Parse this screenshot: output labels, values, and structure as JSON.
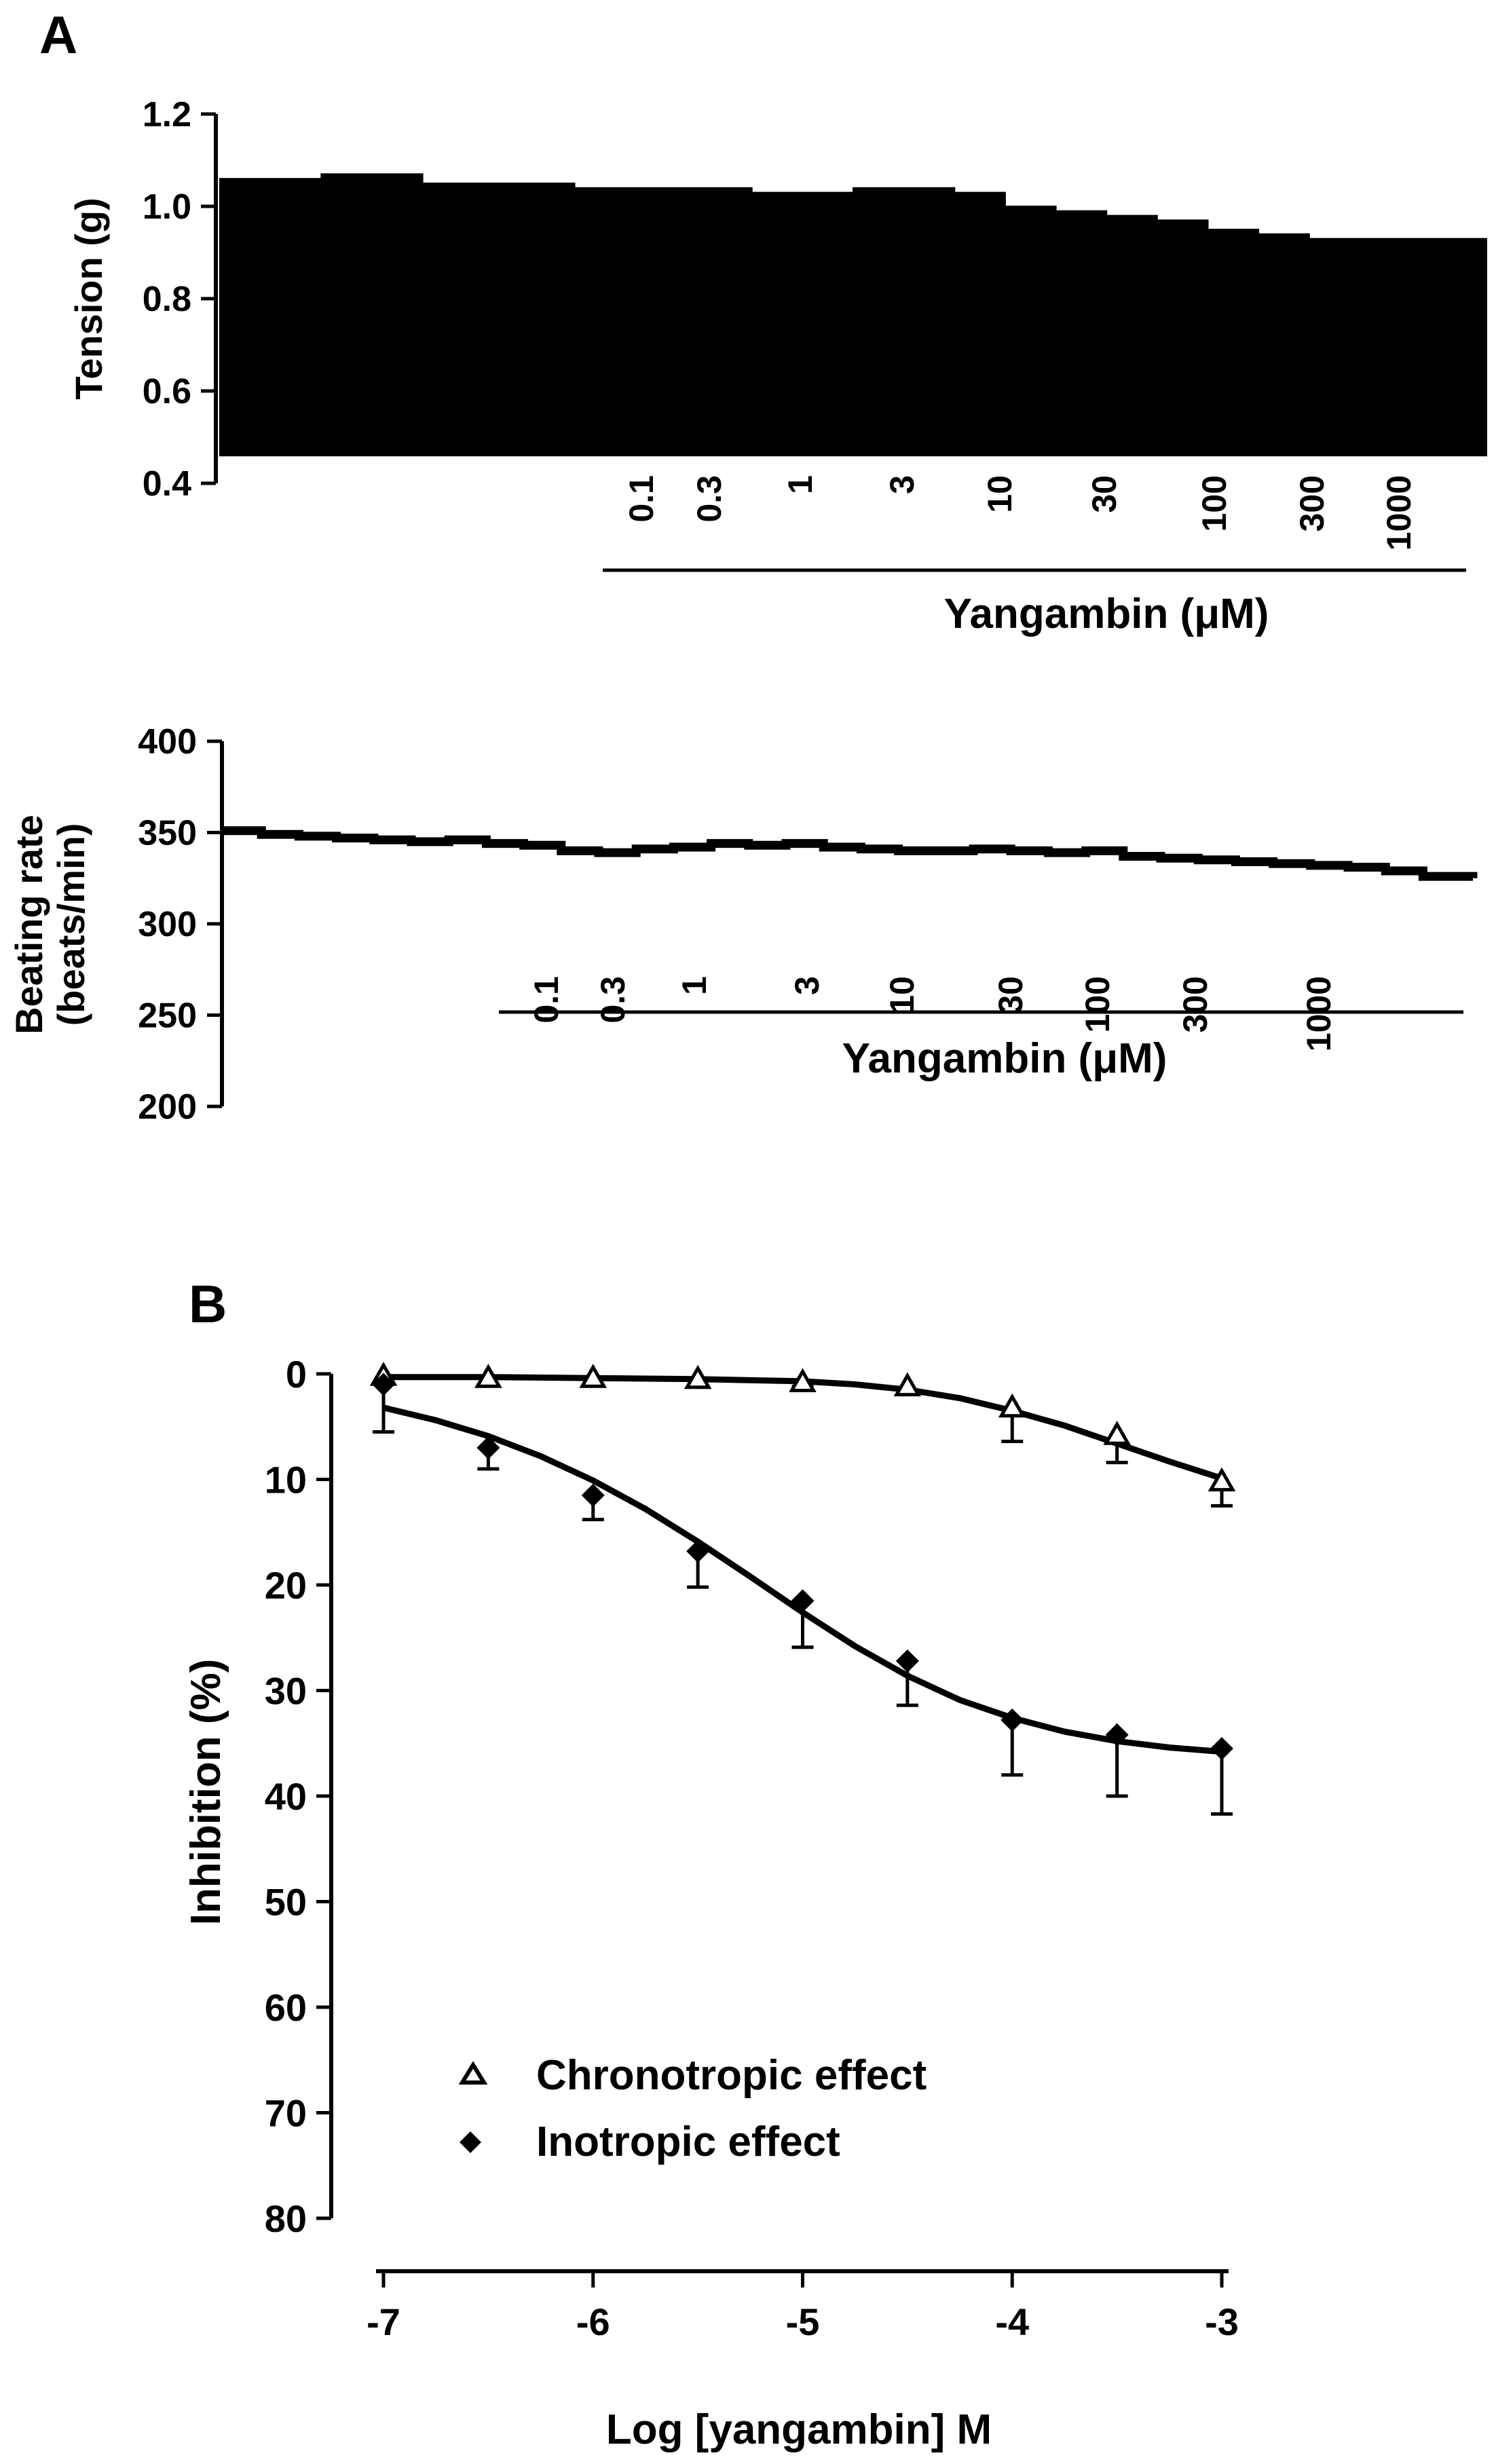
{
  "panels": {
    "a_label": "A",
    "b_label": "B"
  },
  "colors": {
    "ink": "#000000",
    "background": "#ffffff"
  },
  "chart_data": [
    {
      "panel": "A",
      "type": "line",
      "title": "",
      "ylabel": "Tension (g)",
      "xlabel": "",
      "ylim": [
        0.4,
        1.2
      ],
      "yticks": [
        0.4,
        0.6,
        0.8,
        1.0,
        1.2
      ],
      "ytick_labels": [
        "0.4",
        "0.6",
        "0.8",
        "1.0",
        "1.2"
      ],
      "trace_fill": "solid black contraction recording",
      "series": [
        {
          "peak_envelope_x": [
            0,
            4,
            8,
            12,
            16,
            20,
            24,
            28,
            30,
            34,
            38,
            42,
            46,
            50,
            54,
            58,
            62,
            66,
            70,
            74,
            78,
            82,
            86,
            90,
            94,
            100
          ],
          "peak_envelope": [
            1.06,
            1.06,
            1.07,
            1.07,
            1.05,
            1.05,
            1.05,
            1.04,
            1.04,
            1.04,
            1.04,
            1.03,
            1.03,
            1.04,
            1.04,
            1.03,
            1.0,
            0.99,
            0.98,
            0.97,
            0.95,
            0.94,
            0.93,
            0.93,
            0.93,
            0.92
          ],
          "trough_level": 0.46
        }
      ],
      "dose_axis": {
        "label": "Yangambin (μM)",
        "doses": [
          "0.1",
          "0.3",
          "1",
          "3",
          "10",
          "30",
          "100",
          "300",
          "1000"
        ]
      }
    },
    {
      "panel": "A",
      "type": "line",
      "title": "",
      "ylabel_line1": "Beating rate",
      "ylabel_line2": "(beats/min)",
      "xlabel": "",
      "ylim": [
        200,
        400
      ],
      "yticks": [
        200,
        250,
        300,
        350,
        400
      ],
      "ytick_labels": [
        "200",
        "250",
        "300",
        "350",
        "400"
      ],
      "series": [
        {
          "x": [
            0,
            3,
            6,
            9,
            12,
            15,
            18,
            21,
            24,
            27,
            30,
            33,
            36,
            39,
            42,
            45,
            48,
            51,
            54,
            57,
            60,
            63,
            66,
            69,
            72,
            75,
            78,
            81,
            84,
            87,
            90,
            93,
            96,
            100
          ],
          "y": [
            351,
            349,
            348,
            347,
            346,
            345,
            346,
            344,
            343,
            340,
            339,
            341,
            342,
            344,
            343,
            344,
            342,
            341,
            340,
            340,
            341,
            340,
            339,
            340,
            337,
            336,
            335,
            334,
            333,
            332,
            331,
            329,
            326,
            325
          ]
        }
      ],
      "dose_axis": {
        "label": "Yangambin (μM)",
        "doses": [
          "0.1",
          "0.3",
          "1",
          "3",
          "10",
          "30",
          "100",
          "300",
          "1000"
        ]
      }
    },
    {
      "panel": "B",
      "type": "scatter",
      "title": "",
      "xlabel": "Log [yangambin] M",
      "ylabel": "Inhibition (%)",
      "xlim": [
        -7,
        -3
      ],
      "ylim": [
        0,
        80
      ],
      "y_inverted": true,
      "xticks": [
        -7,
        -6,
        -5,
        -4,
        -3
      ],
      "xtick_labels": [
        "-7",
        "-6",
        "-5",
        "-4",
        "-3"
      ],
      "yticks": [
        0,
        10,
        20,
        30,
        40,
        50,
        60,
        70,
        80
      ],
      "ytick_labels": [
        "0",
        "10",
        "20",
        "30",
        "40",
        "50",
        "60",
        "70",
        "80"
      ],
      "legend_position": "bottom-left",
      "series": [
        {
          "name": "Chronotropic effect",
          "marker": "open-triangle",
          "x": [
            -7,
            -6.5,
            -6,
            -5.5,
            -5,
            -4.5,
            -4,
            -3.5,
            -3
          ],
          "y": [
            0.2,
            0.4,
            0.4,
            0.5,
            0.8,
            1.2,
            3.2,
            5.8,
            10.2
          ],
          "error_plus": [
            0,
            0,
            0,
            0,
            0.4,
            0.5,
            3.2,
            2.6,
            2.3
          ],
          "fit_curve": [
            [
              -7,
              0.3
            ],
            [
              -6.5,
              0.3
            ],
            [
              -6,
              0.4
            ],
            [
              -5.5,
              0.5
            ],
            [
              -5,
              0.7
            ],
            [
              -4.75,
              1.0
            ],
            [
              -4.5,
              1.5
            ],
            [
              -4.25,
              2.3
            ],
            [
              -4,
              3.5
            ],
            [
              -3.75,
              4.9
            ],
            [
              -3.5,
              6.6
            ],
            [
              -3.25,
              8.3
            ],
            [
              -3,
              9.9
            ]
          ]
        },
        {
          "name": "Inotropic effect",
          "marker": "filled-diamond",
          "x": [
            -7,
            -6.5,
            -6,
            -5.5,
            -5,
            -4.5,
            -4,
            -3.5,
            -3
          ],
          "y": [
            1.0,
            7.0,
            11.5,
            16.8,
            21.5,
            27.2,
            32.8,
            34.2,
            35.5
          ],
          "error_plus": [
            4.5,
            2.0,
            2.3,
            3.4,
            4.4,
            4.2,
            5.2,
            5.8,
            6.2
          ],
          "fit_curve": [
            [
              -7,
              3.2
            ],
            [
              -6.75,
              4.4
            ],
            [
              -6.5,
              5.9
            ],
            [
              -6.25,
              7.8
            ],
            [
              -6,
              10.1
            ],
            [
              -5.75,
              12.8
            ],
            [
              -5.5,
              15.9
            ],
            [
              -5.25,
              19.2
            ],
            [
              -5,
              22.6
            ],
            [
              -4.75,
              25.8
            ],
            [
              -4.5,
              28.6
            ],
            [
              -4.25,
              30.9
            ],
            [
              -4,
              32.6
            ],
            [
              -3.75,
              33.9
            ],
            [
              -3.5,
              34.8
            ],
            [
              -3.25,
              35.4
            ],
            [
              -3,
              35.8
            ]
          ]
        }
      ]
    }
  ]
}
